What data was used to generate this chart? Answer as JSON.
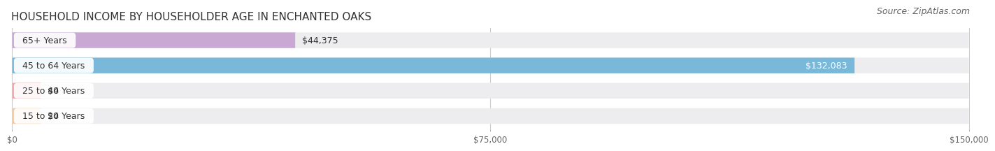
{
  "title": "HOUSEHOLD INCOME BY HOUSEHOLDER AGE IN ENCHANTED OAKS",
  "source": "Source: ZipAtlas.com",
  "categories": [
    "15 to 24 Years",
    "25 to 44 Years",
    "45 to 64 Years",
    "65+ Years"
  ],
  "values": [
    0,
    0,
    132083,
    44375
  ],
  "bar_colors": [
    "#f5c9a0",
    "#f0a8a8",
    "#7ab8d9",
    "#c9a8d4"
  ],
  "row_bg_color": "#ededef",
  "xlim": [
    0,
    150000
  ],
  "xticks": [
    0,
    75000,
    150000
  ],
  "xtick_labels": [
    "$0",
    "$75,000",
    "$150,000"
  ],
  "value_labels": [
    "$0",
    "$0",
    "$132,083",
    "$44,375"
  ],
  "label_inside_bar": [
    false,
    false,
    true,
    false
  ],
  "label_color_inside": "#ffffff",
  "label_color_outside": "#333333",
  "title_fontsize": 11,
  "source_fontsize": 9,
  "background_color": "#ffffff"
}
